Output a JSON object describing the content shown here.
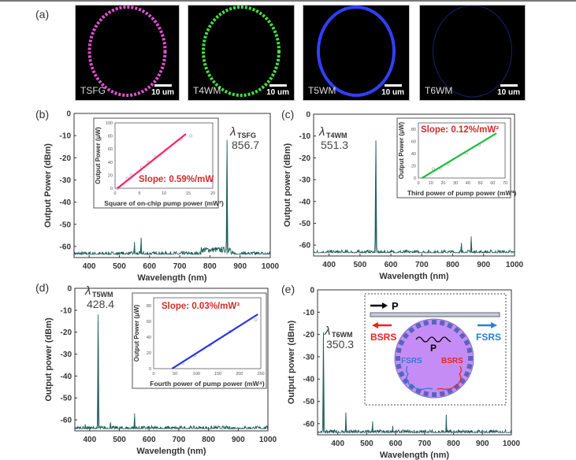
{
  "panel_labels": [
    "(a)",
    "(b)",
    "(c)",
    "(d)",
    "(e)"
  ],
  "micrographs": [
    {
      "label": "TSFG",
      "scale": "10 um",
      "color": "#e050d0"
    },
    {
      "label": "T4WM",
      "scale": "10 um",
      "color": "#40e040"
    },
    {
      "label": "T5WM",
      "scale": "10 um",
      "color": "#3040ff"
    },
    {
      "label": "T6WM",
      "scale": "10 um",
      "color": "#2030a0"
    }
  ],
  "chart_data": [
    {
      "panel": "(b)",
      "type": "line",
      "xlabel": "Wavelength (nm)",
      "ylabel": "Output Power (dBm)",
      "xlim": [
        350,
        1000
      ],
      "ylim": [
        -65,
        0
      ],
      "xticks": [
        400,
        500,
        600,
        700,
        800,
        900,
        1000
      ],
      "yticks": [
        0,
        -10,
        -20,
        -30,
        -40,
        -50,
        -60
      ],
      "color": "#1f5f5a",
      "baseline": -63.5,
      "peaks": [
        {
          "x": 856.7,
          "y": -12
        },
        {
          "x": 550,
          "y": -58
        },
        {
          "x": 572,
          "y": -56
        }
      ],
      "annotation": {
        "symbol": "λ",
        "sub": "TSFG",
        "value": "856.7"
      },
      "inset": {
        "type": "scatter",
        "xlabel": "Square of on-chip pump power (mW²)",
        "ylabel": "Output Power (μW)",
        "xlim": [
          0,
          20
        ],
        "ylim": [
          0,
          100
        ],
        "xticks": [
          0,
          5,
          10,
          15,
          20
        ],
        "yticks": [
          0,
          20,
          40,
          60,
          80,
          100
        ],
        "color": "#ff1f6a",
        "points": [
          [
            0.5,
            0
          ],
          [
            2.5,
            15
          ],
          [
            3.3,
            20
          ],
          [
            5.5,
            32
          ],
          [
            6.8,
            40
          ],
          [
            8.2,
            48
          ],
          [
            13.5,
            75
          ],
          [
            15.5,
            80
          ]
        ],
        "fit": [
          [
            0.5,
            0
          ],
          [
            14.5,
            83
          ]
        ],
        "slope_label": "Slope: 0.59%/mW"
      }
    },
    {
      "panel": "(c)",
      "type": "line",
      "xlabel": "Wavelength (nm)",
      "ylabel": "Output power (dBm)",
      "xlim": [
        350,
        1000
      ],
      "ylim": [
        -65,
        0
      ],
      "xticks": [
        400,
        500,
        600,
        700,
        800,
        900,
        1000
      ],
      "yticks": [
        0,
        -10,
        -20,
        -30,
        -40,
        -50,
        -60
      ],
      "color": "#1f5f5a",
      "baseline": -63.5,
      "peaks": [
        {
          "x": 551.3,
          "y": -12
        },
        {
          "x": 828,
          "y": -59
        },
        {
          "x": 860,
          "y": -56
        }
      ],
      "annotation": {
        "symbol": "λ",
        "sub": "T4WM",
        "value": "551.3"
      },
      "inset": {
        "type": "scatter",
        "xlabel": "Third power of pump power (mW³)",
        "ylabel": "Output Power (μW)",
        "xlim": [
          0,
          70
        ],
        "ylim": [
          0,
          90
        ],
        "xticks": [
          0,
          10,
          20,
          30,
          40,
          50,
          60,
          70
        ],
        "yticks": [
          0,
          20,
          40,
          60,
          80
        ],
        "color": "#22bb44",
        "points": [
          [
            12,
            15
          ],
          [
            18,
            16
          ],
          [
            24,
            23
          ],
          [
            39,
            41
          ],
          [
            49,
            54
          ]
        ],
        "fit": [
          [
            3,
            0
          ],
          [
            63,
            73
          ]
        ],
        "slope_label": "Slope: 0.12%/mW²"
      }
    },
    {
      "panel": "(d)",
      "type": "line",
      "xlabel": "Wavelength (nm)",
      "ylabel": "Output power (dBm)",
      "xlim": [
        350,
        1000
      ],
      "ylim": [
        -65,
        0
      ],
      "xticks": [
        400,
        500,
        600,
        700,
        800,
        900,
        1000
      ],
      "yticks": [
        0,
        -10,
        -20,
        -30,
        -40,
        -50,
        -60
      ],
      "color": "#1f5f5a",
      "baseline": -64,
      "peaks": [
        {
          "x": 428.4,
          "y": -12
        },
        {
          "x": 385,
          "y": -62
        },
        {
          "x": 470,
          "y": -61
        },
        {
          "x": 551,
          "y": -57
        }
      ],
      "annotation": {
        "symbol": "λ",
        "sub": "T5WM",
        "value": "428.4"
      },
      "inset": {
        "type": "scatter",
        "xlabel": "Fourth power of pump power (mW⁴)",
        "ylabel": "Output Power (μW)",
        "xlim": [
          0,
          250
        ],
        "ylim": [
          0,
          90
        ],
        "xticks": [
          0,
          50,
          100,
          150,
          200,
          250
        ],
        "yticks": [
          0,
          20,
          40,
          60,
          80
        ],
        "color": "#2233ee",
        "points": [
          [
            68,
            7
          ],
          [
            96,
            17
          ],
          [
            132,
            30
          ],
          [
            178,
            47
          ],
          [
            238,
            62
          ]
        ],
        "fit": [
          [
            43,
            0
          ],
          [
            243,
            69
          ]
        ],
        "slope_label": "Slope: 0.03%/mW³"
      }
    },
    {
      "panel": "(e)",
      "type": "line",
      "xlabel": "Wavelength (nm)",
      "ylabel": "Output power (dBm)",
      "xlim": [
        330,
        1000
      ],
      "ylim": [
        -65,
        0
      ],
      "xticks": [
        400,
        500,
        600,
        700,
        800,
        900,
        1000
      ],
      "yticks": [
        0,
        -10,
        -20,
        -30,
        -40,
        -50,
        -60
      ],
      "color": "#1f5f5a",
      "baseline": -64,
      "peaks": [
        {
          "x": 350.3,
          "y": -19
        },
        {
          "x": 428,
          "y": -55
        },
        {
          "x": 520,
          "y": -59
        },
        {
          "x": 590,
          "y": -61
        },
        {
          "x": 775,
          "y": -56
        }
      ],
      "annotation": {
        "symbol": "λ",
        "sub": "T6WM",
        "value": "350.3"
      },
      "diagram": {
        "pump": "P",
        "inner_pump": "P",
        "bsrs": "BSRS",
        "fsrs": "FSRS",
        "bsrs_color": "#ee2222",
        "fsrs_color": "#2a7fd0",
        "disk_color": "#c58cf5",
        "ring_color": "#5566bb"
      }
    }
  ]
}
